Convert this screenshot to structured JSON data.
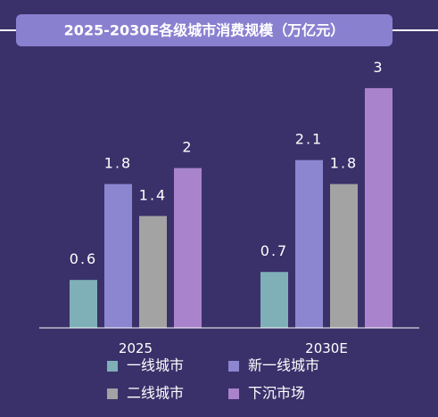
{
  "chart_data": {
    "type": "bar",
    "title": "2025-2030E各级城市消费规模（万亿元）",
    "categories": [
      "2025",
      "2030E"
    ],
    "series": [
      {
        "name": "一线城市",
        "values": [
          0.6,
          0.7
        ],
        "color": "#7fb0b8"
      },
      {
        "name": "新一线城市",
        "values": [
          1.8,
          2.1
        ],
        "color": "#8c86d0"
      },
      {
        "name": "二线城市",
        "values": [
          1.4,
          1.8
        ],
        "color": "#a3a3a3"
      },
      {
        "name": "下沉市场",
        "values": [
          2,
          3
        ],
        "color": "#a983cc"
      }
    ],
    "data_labels": [
      [
        "0.6",
        "0.7"
      ],
      [
        "1.8",
        "2.1"
      ],
      [
        "1.4",
        "1.8"
      ],
      [
        "2",
        "3"
      ]
    ],
    "xlabel": "",
    "ylabel": "",
    "ylim": [
      0,
      3.3
    ],
    "grid": false,
    "legend_position": "bottom",
    "colors": {
      "background": "#3a316a",
      "title_bg": "#8a80d0",
      "title_text": "#ffffff",
      "label_text": "#ffffff",
      "axis": "#ffffff",
      "accent_line": "#ffffff"
    }
  }
}
